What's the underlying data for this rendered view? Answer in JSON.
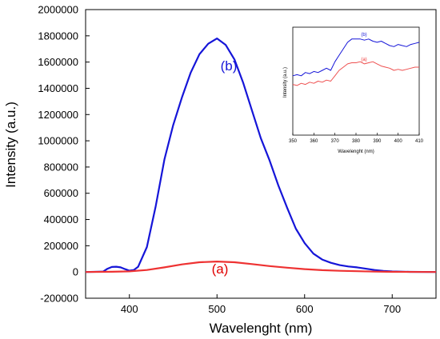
{
  "chart_data": [
    {
      "type": "line",
      "title": "",
      "xlabel": "Wavelenght (nm)",
      "ylabel": "Intensity (a.u.)",
      "xlim": [
        350,
        750
      ],
      "ylim": [
        -200000,
        2000000
      ],
      "x_ticks": [
        400,
        500,
        600,
        700
      ],
      "y_ticks": [
        -200000,
        0,
        200000,
        400000,
        600000,
        800000,
        1000000,
        1200000,
        1400000,
        1600000,
        1800000,
        2000000
      ],
      "grid": false,
      "series": [
        {
          "name": "(b)",
          "color": "#1515d8",
          "x": [
            350,
            370,
            375,
            380,
            385,
            390,
            395,
            400,
            405,
            410,
            420,
            430,
            440,
            450,
            460,
            470,
            480,
            490,
            500,
            510,
            520,
            530,
            540,
            550,
            560,
            570,
            580,
            590,
            600,
            610,
            620,
            630,
            640,
            650,
            660,
            670,
            680,
            690,
            700,
            720,
            750
          ],
          "y": [
            0,
            3000,
            25000,
            38000,
            40000,
            35000,
            22000,
            10000,
            15000,
            40000,
            190000,
            500000,
            860000,
            1120000,
            1330000,
            1520000,
            1660000,
            1740000,
            1780000,
            1730000,
            1620000,
            1440000,
            1230000,
            1020000,
            850000,
            660000,
            490000,
            330000,
            220000,
            140000,
            95000,
            70000,
            52000,
            42000,
            35000,
            25000,
            15000,
            8000,
            4000,
            1000,
            0
          ]
        },
        {
          "name": "(a)",
          "color": "#ee3232",
          "x": [
            350,
            380,
            400,
            420,
            440,
            460,
            480,
            500,
            520,
            540,
            560,
            580,
            600,
            620,
            640,
            660,
            680,
            700,
            750
          ],
          "y": [
            0,
            2000,
            5000,
            15000,
            35000,
            58000,
            74000,
            80000,
            74000,
            60000,
            45000,
            33000,
            22000,
            14000,
            9000,
            6000,
            3000,
            1000,
            0
          ]
        }
      ]
    },
    {
      "type": "line",
      "title": "",
      "xlabel": "Wavelenght (nm)",
      "ylabel": "Intensity (a.u.)",
      "xlim": [
        350,
        410
      ],
      "x_ticks": [
        350,
        360,
        370,
        380,
        390,
        400,
        410
      ],
      "ylim": [
        0,
        1
      ],
      "grid": false,
      "series": [
        {
          "name": "(b)",
          "color": "#1515d8",
          "x": [
            350,
            352,
            354,
            356,
            358,
            360,
            362,
            364,
            366,
            368,
            370,
            372,
            374,
            376,
            378,
            380,
            382,
            384,
            386,
            388,
            390,
            392,
            394,
            396,
            398,
            400,
            402,
            404,
            406,
            408,
            410
          ],
          "y": [
            0.55,
            0.56,
            0.55,
            0.58,
            0.57,
            0.59,
            0.58,
            0.6,
            0.62,
            0.6,
            0.68,
            0.74,
            0.8,
            0.86,
            0.89,
            0.89,
            0.89,
            0.88,
            0.89,
            0.87,
            0.86,
            0.87,
            0.85,
            0.83,
            0.82,
            0.84,
            0.83,
            0.82,
            0.84,
            0.85,
            0.86
          ]
        },
        {
          "name": "(a)",
          "color": "#ee5050",
          "x": [
            350,
            352,
            354,
            356,
            358,
            360,
            362,
            364,
            366,
            368,
            370,
            372,
            374,
            376,
            378,
            380,
            382,
            384,
            386,
            388,
            390,
            392,
            394,
            396,
            398,
            400,
            402,
            404,
            406,
            408,
            410
          ],
          "y": [
            0.47,
            0.46,
            0.48,
            0.47,
            0.49,
            0.48,
            0.5,
            0.49,
            0.51,
            0.5,
            0.55,
            0.6,
            0.63,
            0.66,
            0.67,
            0.67,
            0.68,
            0.66,
            0.67,
            0.68,
            0.66,
            0.64,
            0.63,
            0.62,
            0.6,
            0.61,
            0.6,
            0.61,
            0.62,
            0.63,
            0.63
          ]
        }
      ]
    }
  ]
}
